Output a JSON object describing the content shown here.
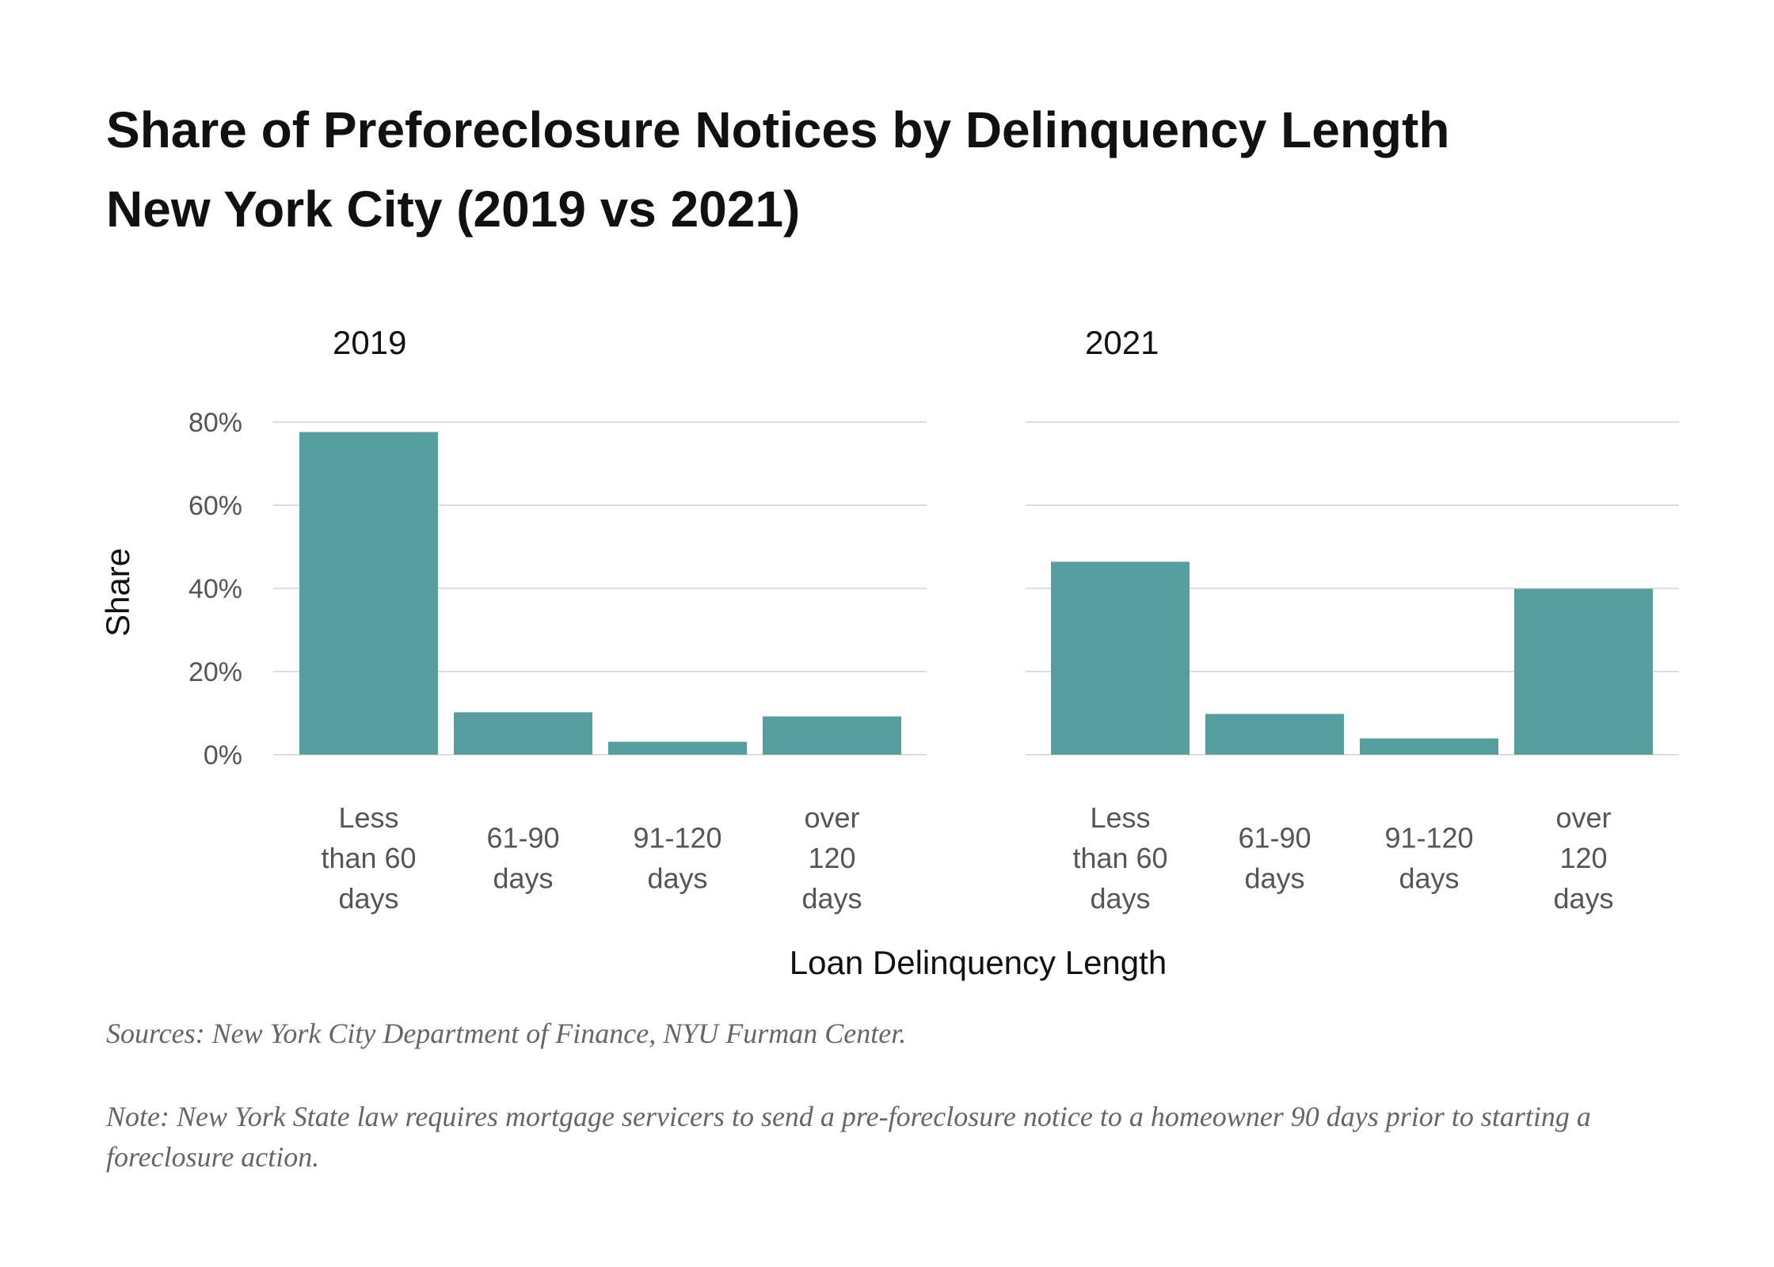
{
  "chart_data": {
    "type": "bar",
    "title": [
      "Share of Preforeclosure Notices by Delinquency Length",
      "New York City (2019 vs 2021)"
    ],
    "xlabel": "Loan Delinquency Length",
    "ylabel": "Share",
    "ylim": [
      0,
      80
    ],
    "yticks": [
      "0%",
      "20%",
      "40%",
      "60%",
      "80%"
    ],
    "grid": true,
    "categories": [
      [
        "Less",
        "than 60",
        "days"
      ],
      [
        "61-90",
        "days"
      ],
      [
        "91-120",
        "days"
      ],
      [
        "over",
        "120",
        "days"
      ]
    ],
    "panels": [
      {
        "name": "2019",
        "values": [
          77.6,
          10.2,
          3.1,
          9.2
        ]
      },
      {
        "name": "2021",
        "values": [
          46.4,
          9.8,
          3.9,
          39.9
        ]
      }
    ],
    "bar_color": "#579e9f",
    "grid_color": "#dddddd"
  },
  "footer": {
    "source": "Sources: New York City Department of Finance, NYU Furman Center.",
    "note": "Note: New York State law requires mortgage servicers to send a pre-foreclosure notice to a homeowner 90 days prior to starting a foreclosure action."
  }
}
